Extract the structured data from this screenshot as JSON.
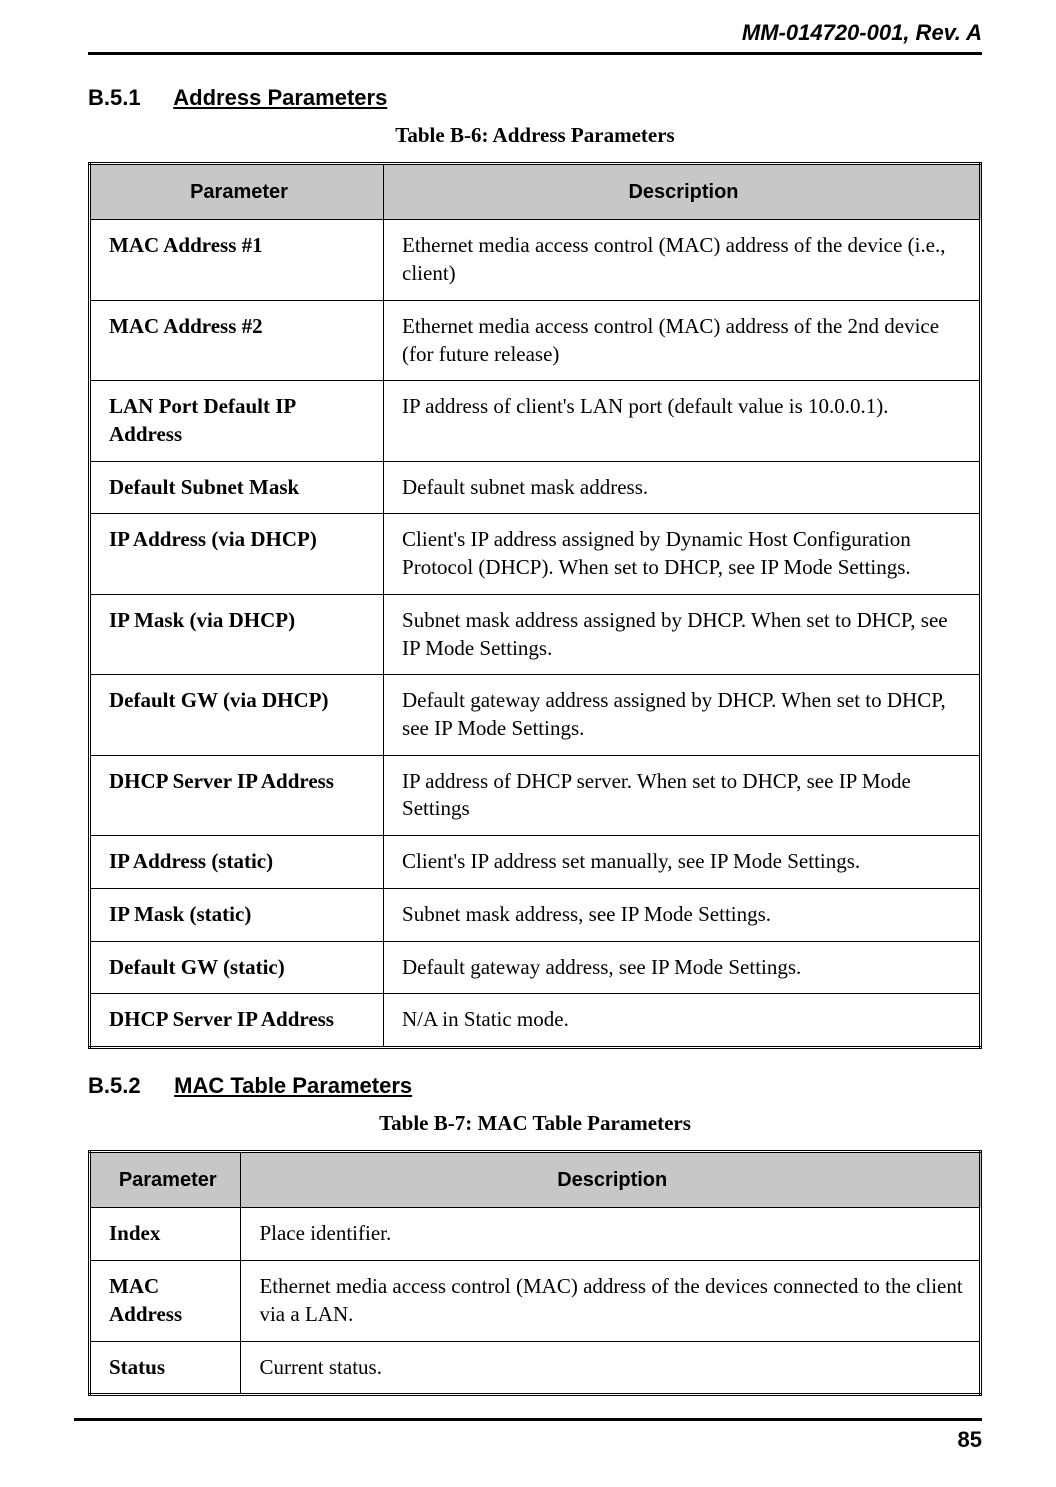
{
  "header": {
    "doc_id": "MM-014720-001, Rev. A"
  },
  "sections": [
    {
      "number": "B.5.1",
      "title": "Address Parameters",
      "caption": "Table B-6:  Address Parameters",
      "col_widths": [
        "33%",
        "67%"
      ],
      "columns": [
        "Parameter",
        "Description"
      ],
      "rows": [
        [
          "MAC Address #1",
          "Ethernet media access control (MAC) address of the device (i.e., client)"
        ],
        [
          "MAC Address #2",
          "Ethernet media access control (MAC) address of the 2nd device (for future release)"
        ],
        [
          "LAN Port Default IP Address",
          "IP address of client's LAN port (default value is 10.0.0.1)."
        ],
        [
          "Default Subnet Mask",
          "Default subnet mask address."
        ],
        [
          "IP Address (via DHCP)",
          "Client's IP address assigned by Dynamic Host Configuration Protocol (DHCP).  When set to DHCP, see IP Mode Settings."
        ],
        [
          "IP Mask (via DHCP)",
          "Subnet mask address assigned by DHCP.  When set to DHCP, see IP Mode Settings."
        ],
        [
          "Default GW (via DHCP)",
          "Default gateway address assigned by DHCP.  When set to DHCP, see IP Mode Settings."
        ],
        [
          "DHCP Server IP Address",
          "IP address of DHCP server.  When set to DHCP, see IP Mode Settings"
        ],
        [
          "IP Address (static)",
          "Client's IP address set manually, see IP Mode Settings."
        ],
        [
          "IP Mask (static)",
          "Subnet mask address, see IP Mode Settings."
        ],
        [
          "Default GW (static)",
          "Default gateway address, see IP Mode Settings."
        ],
        [
          "DHCP Server IP Address",
          "N/A in Static mode."
        ]
      ]
    },
    {
      "number": "B.5.2",
      "title": "MAC Table Parameters",
      "caption": "Table B-7:  MAC Table Parameters",
      "col_widths": [
        "17%",
        "83%"
      ],
      "columns": [
        "Parameter",
        "Description"
      ],
      "rows": [
        [
          "Index",
          "Place identifier."
        ],
        [
          "MAC Address",
          "Ethernet media access control (MAC) address of the devices connected to the client via a LAN."
        ],
        [
          "Status",
          "Current status."
        ]
      ]
    }
  ],
  "footer": {
    "page_number": "85"
  },
  "style": {
    "header_bg": "#c7c7c7",
    "border_color": "#000000",
    "page_bg": "#ffffff",
    "body_font": "Times New Roman",
    "heading_font": "Arial"
  }
}
